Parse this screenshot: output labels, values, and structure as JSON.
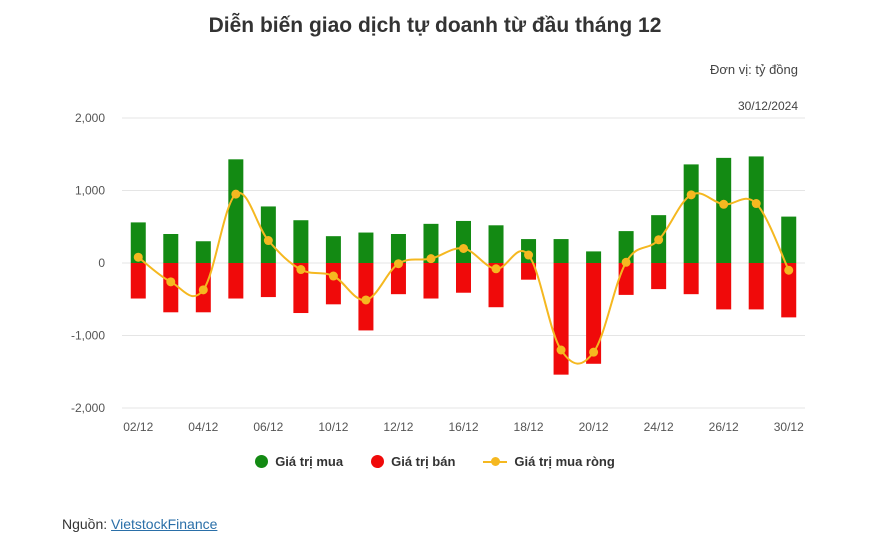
{
  "unit_label": "Đơn vị: tỷ đồng",
  "date_label": "30/12/2024",
  "source": {
    "prefix": "Nguồn: ",
    "link_text": "VietstockFinance"
  },
  "colors": {
    "buy": "#138a13",
    "sell": "#f00a0a",
    "net": "#f5b820",
    "grid": "#e5e5e5"
  },
  "chart_data": {
    "type": "bar",
    "title": "Diễn biến giao dịch tự doanh từ đầu tháng 12",
    "xlabel": "",
    "ylabel": "",
    "ylim": [
      -2000,
      2000
    ],
    "y_ticks": [
      "2,000",
      "1,000",
      "0",
      "-1,000",
      "-2,000"
    ],
    "y_tick_values": [
      2000,
      1000,
      0,
      -1000,
      -2000
    ],
    "categories": [
      "02/12",
      "03/12",
      "04/12",
      "05/12",
      "06/12",
      "09/12",
      "10/12",
      "11/12",
      "12/12",
      "13/12",
      "16/12",
      "17/12",
      "18/12",
      "19/12",
      "20/12",
      "23/12",
      "24/12",
      "25/12",
      "26/12",
      "27/12",
      "30/12"
    ],
    "x_tick_labels": [
      "02/12",
      "04/12",
      "06/12",
      "10/12",
      "12/12",
      "16/12",
      "18/12",
      "20/12",
      "24/12",
      "26/12",
      "30/12"
    ],
    "x_tick_indices": [
      0,
      2,
      4,
      6,
      8,
      10,
      12,
      14,
      16,
      18,
      20
    ],
    "series": [
      {
        "name": "Giá trị mua",
        "type": "bar",
        "values": [
          560,
          400,
          300,
          1430,
          780,
          590,
          370,
          420,
          400,
          540,
          580,
          520,
          330,
          330,
          160,
          440,
          660,
          1360,
          1450,
          1470,
          640
        ]
      },
      {
        "name": "Giá trị bán",
        "type": "bar",
        "values": [
          -490,
          -680,
          -680,
          -490,
          -470,
          -690,
          -570,
          -930,
          -430,
          -490,
          -410,
          -610,
          -230,
          -1540,
          -1390,
          -440,
          -360,
          -430,
          -640,
          -640,
          -750
        ]
      },
      {
        "name": "Giá trị mua ròng",
        "type": "line",
        "values": [
          80,
          -260,
          -370,
          950,
          310,
          -90,
          -180,
          -510,
          -10,
          60,
          200,
          -80,
          110,
          -1200,
          -1230,
          10,
          320,
          940,
          810,
          820,
          -100
        ]
      }
    ],
    "legend_position": "bottom",
    "grid": true
  }
}
